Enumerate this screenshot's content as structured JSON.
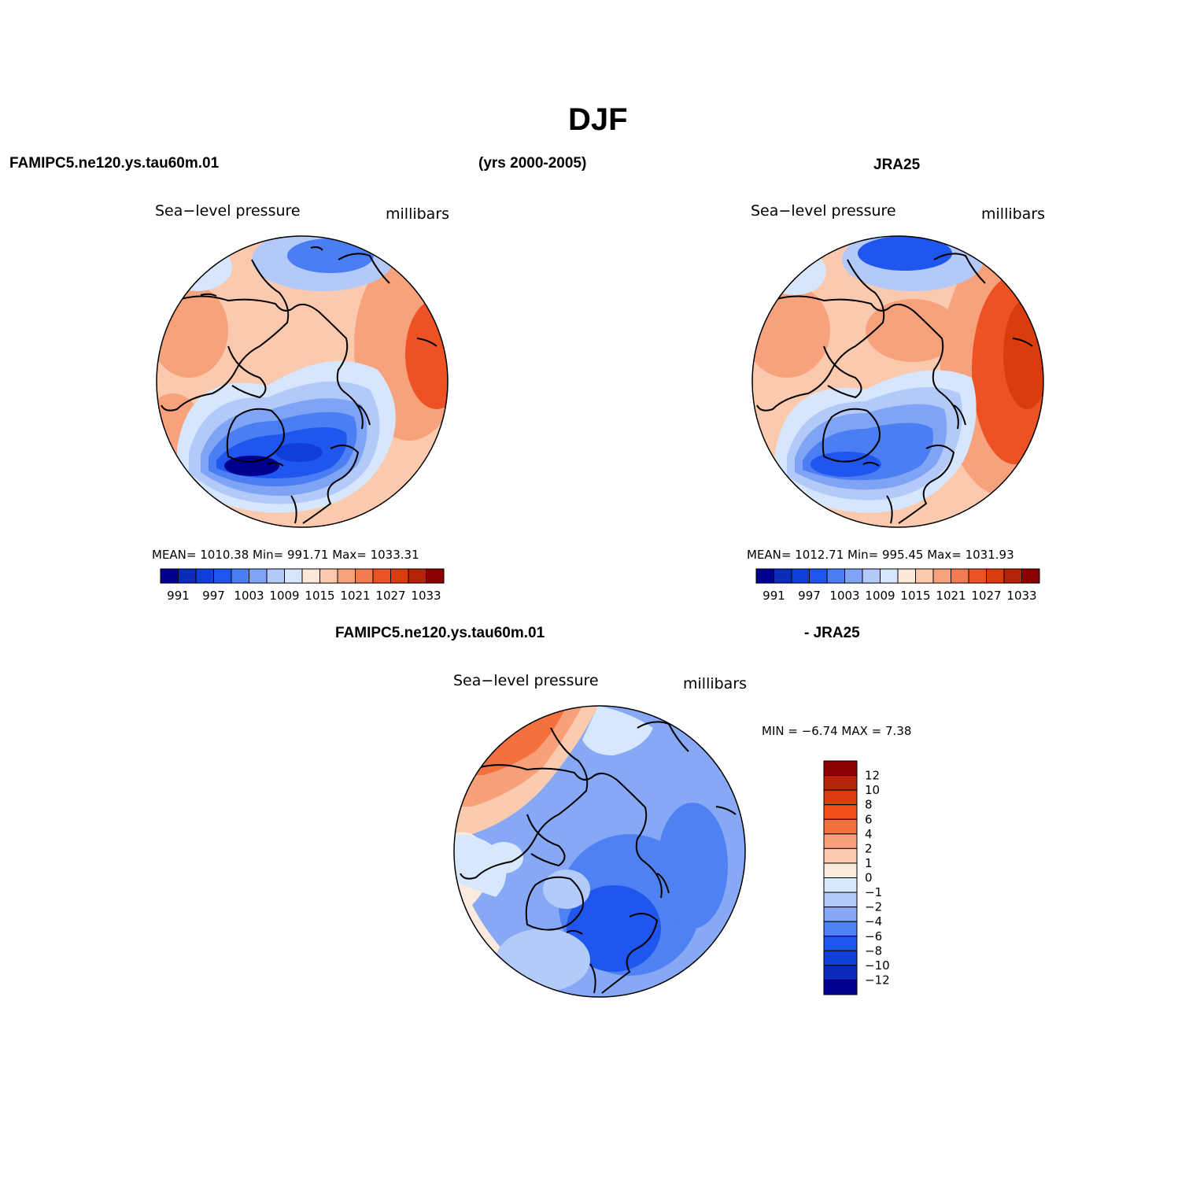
{
  "page": {
    "title": "DJF",
    "left_case": "FAMIPC5.ne120.ys.tau60m.01",
    "years": "(yrs 2000-2005)",
    "right_case": "JRA25",
    "diff_case": "FAMIPC5.ne120.ys.tau60m.01",
    "diff_suffix": "- JRA25"
  },
  "panels": [
    {
      "id": "model",
      "variable": "Sea−level pressure",
      "units": "millibars",
      "stats_text": "MEAN=  1010.38    Min=  991.71    Max=  1033.31",
      "mean": 1010.38,
      "min": 991.71,
      "max": 1033.31
    },
    {
      "id": "obs",
      "variable": "Sea−level pressure",
      "units": "millibars",
      "stats_text": "MEAN=  1012.71    Min=  995.45    Max=  1031.93",
      "mean": 1012.71,
      "min": 995.45,
      "max": 1031.93
    },
    {
      "id": "diff",
      "variable": "Sea−level pressure",
      "units": "millibars",
      "stats_text": "MIN =   −6.74  MAX =     7.38",
      "min": -6.74,
      "max": 7.38
    }
  ],
  "colorbars": {
    "abs_colors": [
      "#00008f",
      "#0a2cb8",
      "#0f3fd8",
      "#1f56ee",
      "#4a7ef2",
      "#7fa4f5",
      "#b2c9f9",
      "#d6e6fc",
      "#fde8d8",
      "#fbcaae",
      "#f7a27c",
      "#f17b50",
      "#ec5223",
      "#d93d0e",
      "#b52309",
      "#8b0000"
    ],
    "abs_ticks": [
      "991",
      "997",
      "1003",
      "1009",
      "1015",
      "1021",
      "1027",
      "1033"
    ],
    "diff_colors": [
      "#8b0000",
      "#b52309",
      "#d93d0e",
      "#f24e1a",
      "#f5703f",
      "#f8a079",
      "#fbcbb0",
      "#fdeadf",
      "#d8e8fc",
      "#b2cbf9",
      "#86a8f5",
      "#4f81f2",
      "#1f56ee",
      "#0f3fd8",
      "#0a2cb8",
      "#00008f"
    ],
    "diff_ticks": [
      "12",
      "10",
      "8",
      "6",
      "4",
      "2",
      "1",
      "0",
      "−1",
      "−2",
      "−4",
      "−6",
      "−8",
      "−10",
      "−12"
    ]
  }
}
